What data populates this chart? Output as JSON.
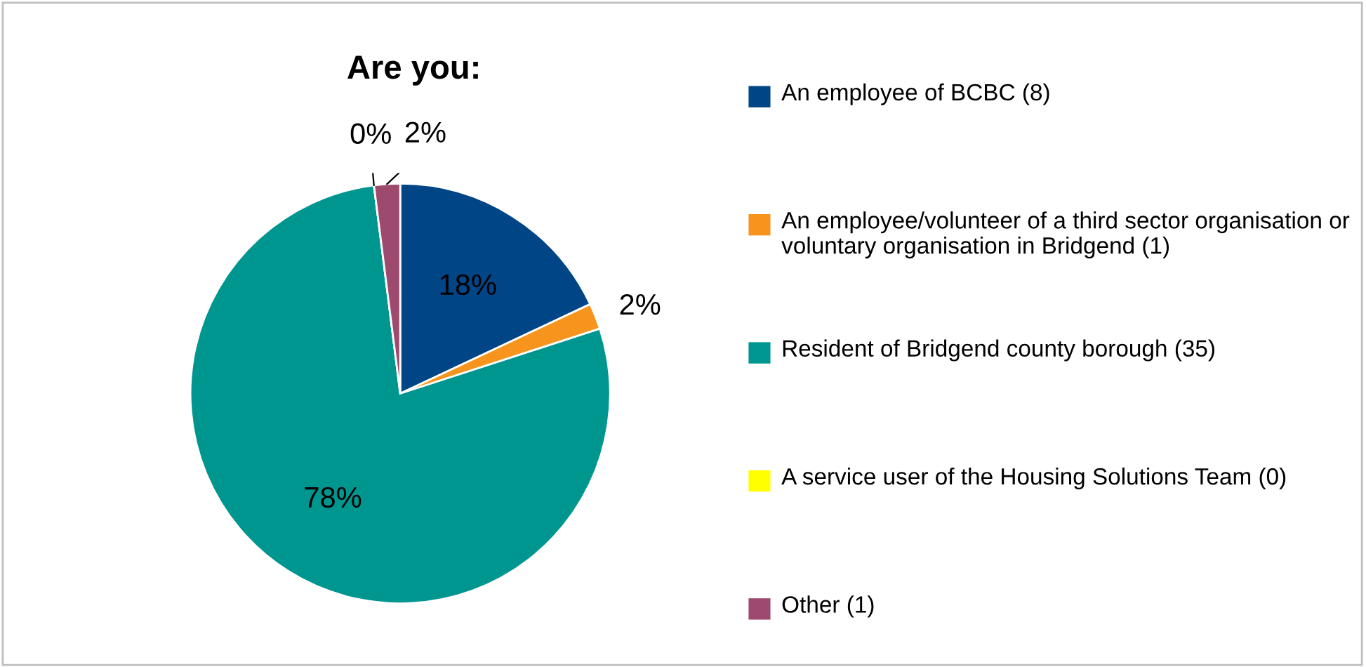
{
  "chart_data": {
    "type": "pie",
    "title": "Are you:",
    "categories": [
      "An employee of BCBC (8)",
      "An employee/volunteer of a third sector organisation or voluntary organisation in Bridgend (1)",
      "Resident of Bridgend county borough (35)",
      "A service user of the Housing Solutions Team (0)",
      "Other (1)"
    ],
    "values": [
      18,
      2,
      78,
      0,
      2
    ],
    "value_labels": [
      "18%",
      "2%",
      "78%",
      "0%",
      "2%"
    ],
    "colors": [
      "#004586",
      "#f7941d",
      "#009690",
      "#ffff00",
      "#9e4a6f"
    ],
    "legend": "right"
  }
}
